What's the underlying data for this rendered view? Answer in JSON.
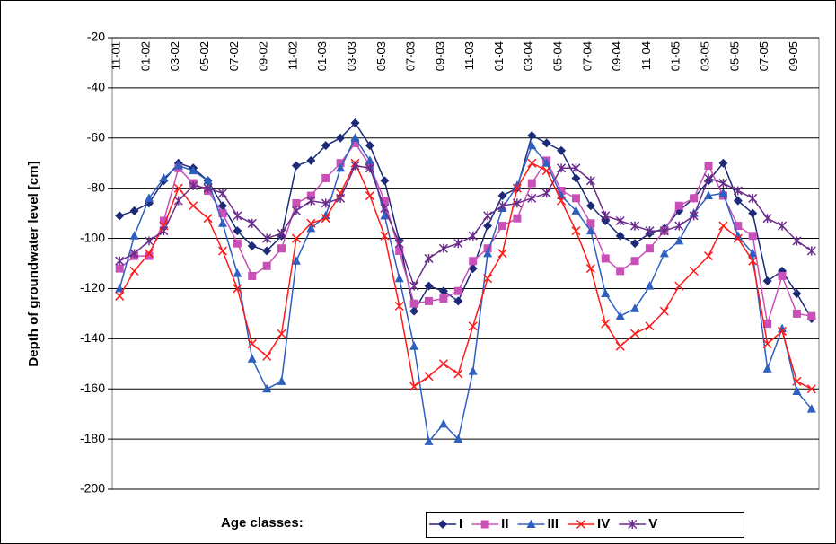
{
  "chart_data": {
    "type": "line",
    "ylabel": "Depth of groundwater level [cm]",
    "legend_title": "Age classes:",
    "legend_position": "bottom",
    "grid": true,
    "ylim": [
      -200,
      -20
    ],
    "yticks": [
      -200,
      -180,
      -160,
      -140,
      -120,
      -100,
      -80,
      -60,
      -40,
      -20
    ],
    "categories": [
      "11-01",
      null,
      "01-02",
      null,
      "03-02",
      null,
      "05-02",
      null,
      "07-02",
      null,
      "09-02",
      null,
      "11-02",
      null,
      "01-03",
      null,
      "03-03",
      null,
      "05-03",
      null,
      "07-03",
      null,
      "09-03",
      null,
      "11-03",
      null,
      "01-04",
      null,
      "03-04",
      null,
      "05-04",
      null,
      "07-04",
      null,
      "09-04",
      null,
      "11-04",
      null,
      "01-05",
      null,
      "03-05",
      null,
      "05-05",
      null,
      "07-05",
      null,
      "09-05",
      null
    ],
    "series": [
      {
        "name": "I",
        "color": "#1c2a78",
        "marker": "diamond",
        "values": [
          -91,
          -89,
          -86,
          -77,
          -70,
          -72,
          -77,
          -87,
          -97,
          -103,
          -105,
          -99,
          -71,
          -69,
          -63,
          -60,
          -54,
          -63,
          -77,
          -101,
          -129,
          -119,
          -121,
          -125,
          -112,
          -95,
          -83,
          -80,
          -59,
          -62,
          -65,
          -76,
          -87,
          -93,
          -99,
          -102,
          -98,
          -96,
          -89,
          -84,
          -77,
          -70,
          -85,
          -90,
          -117,
          -113,
          -122,
          -132
        ]
      },
      {
        "name": "II",
        "color": "#c850b8",
        "marker": "square",
        "values": [
          -112,
          -107,
          -107,
          -93,
          -72,
          -78,
          -81,
          -90,
          -102,
          -115,
          -111,
          -104,
          -86,
          -83,
          -76,
          -70,
          -62,
          -71,
          -85,
          -105,
          -126,
          -125,
          -124,
          -121,
          -109,
          -104,
          -95,
          -92,
          -78,
          -69,
          -81,
          -84,
          -94,
          -108,
          -113,
          -109,
          -104,
          -97,
          -87,
          -84,
          -71,
          -83,
          -95,
          -99,
          -134,
          -115,
          -130,
          -131
        ]
      },
      {
        "name": "III",
        "color": "#2f5fbf",
        "marker": "triangle",
        "values": [
          -120,
          -99,
          -84,
          -76,
          -71,
          -73,
          -77,
          -94,
          -114,
          -148,
          -160,
          -157,
          -109,
          -96,
          -91,
          -72,
          -60,
          -69,
          -91,
          -116,
          -143,
          -181,
          -174,
          -180,
          -153,
          -106,
          -88,
          -79,
          -63,
          -70,
          -83,
          -89,
          -97,
          -122,
          -131,
          -128,
          -119,
          -106,
          -101,
          -90,
          -83,
          -82,
          -99,
          -106,
          -152,
          -136,
          -161,
          -168
        ]
      },
      {
        "name": "IV",
        "color": "#ff1a1a",
        "marker": "x",
        "values": [
          -123,
          -113,
          -106,
          -95,
          -80,
          -87,
          -92,
          -105,
          -120,
          -142,
          -147,
          -138,
          -100,
          -94,
          -92,
          -82,
          -70,
          -83,
          -99,
          -127,
          -159,
          -155,
          -150,
          -154,
          -135,
          -116,
          -106,
          -80,
          -70,
          -73,
          -85,
          -97,
          -112,
          -134,
          -143,
          -138,
          -135,
          -129,
          -119,
          -113,
          -107,
          -95,
          -100,
          -109,
          -142,
          -137,
          -157,
          -160
        ]
      },
      {
        "name": "V",
        "color": "#6a2d8a",
        "marker": "star",
        "values": [
          -109,
          -106,
          -101,
          -97,
          -85,
          -79,
          -80,
          -82,
          -91,
          -94,
          -100,
          -98,
          -89,
          -85,
          -86,
          -84,
          -71,
          -72,
          -88,
          -102,
          -119,
          -108,
          -104,
          -102,
          -99,
          -91,
          -87,
          -86,
          -84,
          -82,
          -72,
          -72,
          -77,
          -91,
          -93,
          -95,
          -97,
          -97,
          -95,
          -91,
          -76,
          -78,
          -81,
          -84,
          -92,
          -95,
          -101,
          -105
        ]
      }
    ]
  }
}
